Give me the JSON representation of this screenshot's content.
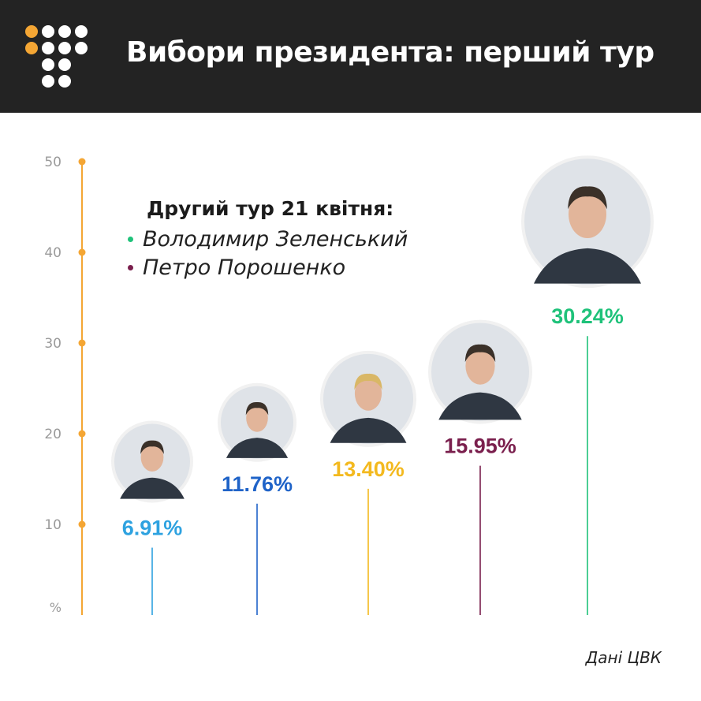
{
  "header": {
    "title": "Вибори президента: перший тур"
  },
  "legend": {
    "title": "Другий тур 21 квітня:",
    "items": [
      {
        "label": "Володимир Зеленський",
        "color": "#1fc27a"
      },
      {
        "label": "Петро Порошенко",
        "color": "#7a1f4d"
      }
    ]
  },
  "source": "Дані ЦВК",
  "colors": {
    "axis": "#f4a634",
    "tick_label": "#9a9a9a",
    "header_bg": "#232323"
  },
  "chart_data": {
    "type": "bar",
    "unit_label": "%",
    "ylim": [
      0,
      50
    ],
    "yticks": [
      10,
      20,
      30,
      40,
      50
    ],
    "grid": false,
    "series": [
      {
        "value": 6.91,
        "label": "6.91%",
        "color": "#2ea2e0",
        "icon": "candidate-1-photo"
      },
      {
        "value": 11.76,
        "label": "11.76%",
        "color": "#1f63c8",
        "icon": "candidate-2-photo"
      },
      {
        "value": 13.4,
        "label": "13.40%",
        "color": "#f3b91e",
        "icon": "candidate-3-photo"
      },
      {
        "value": 15.95,
        "label": "15.95%",
        "color": "#7a1f4d",
        "icon": "candidate-4-photo"
      },
      {
        "value": 30.24,
        "label": "30.24%",
        "color": "#1fc27a",
        "icon": "candidate-5-photo"
      }
    ]
  }
}
